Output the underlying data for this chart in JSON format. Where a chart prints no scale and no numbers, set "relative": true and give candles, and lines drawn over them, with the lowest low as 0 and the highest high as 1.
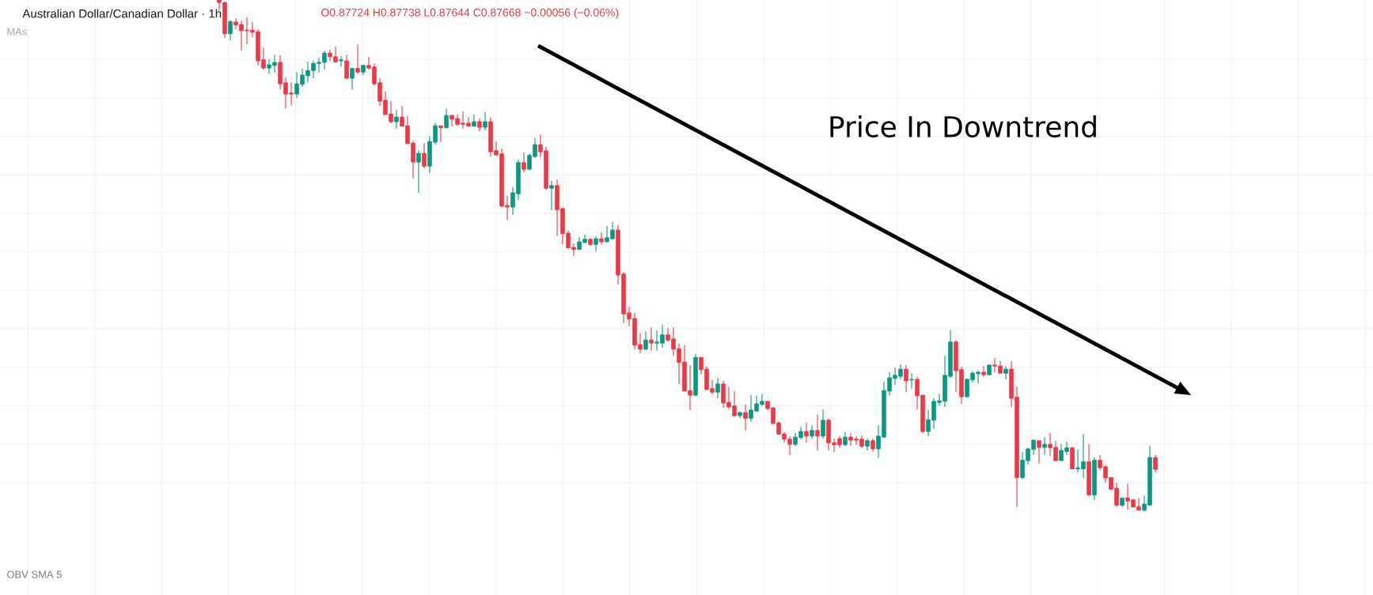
{
  "chart_data": {
    "type": "candlestick",
    "relative": true,
    "grid": true,
    "title": "Australian Dollar/Canadian Dollar · 1h",
    "subtitle": "O0.87724 H0.87738 L0.87644 C0.87668 −0.00056 (−0.06%)",
    "annotations": [
      "MAs",
      "Price In Downtrend",
      "OBV SMA 5"
    ],
    "categories": [
      null,
      null,
      null,
      null,
      null,
      null,
      null,
      null,
      null,
      null,
      null,
      null,
      null,
      null,
      null,
      null,
      null,
      null,
      null,
      null,
      null,
      null,
      null,
      null,
      null,
      null,
      null,
      null,
      null,
      null,
      null,
      null,
      null,
      null,
      null,
      null,
      null,
      null,
      null,
      null,
      null,
      null,
      null,
      null,
      null,
      null,
      null,
      null,
      null,
      null,
      null,
      null,
      null,
      null,
      null,
      null,
      null,
      null,
      null,
      null,
      null,
      null,
      null,
      null,
      null,
      null,
      null,
      null,
      null,
      null,
      null,
      null,
      null,
      null,
      null,
      null,
      null,
      null,
      null,
      null,
      null,
      null,
      null,
      null,
      null,
      null,
      null,
      null,
      null,
      null,
      null,
      null,
      null,
      null,
      null,
      null,
      null,
      null,
      null,
      null,
      null,
      null,
      null,
      null,
      null,
      null,
      null,
      null,
      null,
      null,
      null,
      null,
      null,
      null,
      null,
      null,
      null,
      null,
      null,
      null,
      null,
      null,
      null,
      null,
      null,
      null,
      null,
      null,
      null,
      null,
      null,
      null,
      null,
      null,
      null,
      null,
      null,
      null,
      null,
      null,
      null,
      null,
      null,
      null,
      null,
      null,
      null,
      null,
      null,
      null,
      null,
      null,
      null,
      null,
      null,
      null,
      null,
      null,
      null,
      null,
      null,
      null,
      null,
      null,
      null,
      null,
      null,
      null,
      null,
      null
    ],
    "ohlc": [
      [
        1,
        1,
        0.98,
        0.995
      ],
      [
        0.995,
        0.997,
        0.926,
        0.934
      ],
      [
        0.934,
        0.96,
        0.921,
        0.958
      ],
      [
        0.957,
        0.964,
        0.943,
        0.951
      ],
      [
        0.952,
        0.96,
        0.901,
        0.94
      ],
      [
        0.941,
        0.966,
        0.913,
        0.94
      ],
      [
        0.941,
        0.957,
        0.927,
        0.937
      ],
      [
        0.938,
        0.943,
        0.872,
        0.881
      ],
      [
        0.883,
        0.907,
        0.864,
        0.867
      ],
      [
        0.867,
        0.884,
        0.856,
        0.873
      ],
      [
        0.872,
        0.893,
        0.858,
        0.878
      ],
      [
        0.878,
        0.892,
        0.825,
        0.836
      ],
      [
        0.838,
        0.849,
        0.787,
        0.816
      ],
      [
        0.818,
        0.839,
        0.794,
        0.816
      ],
      [
        0.816,
        0.859,
        0.808,
        0.836
      ],
      [
        0.835,
        0.866,
        0.83,
        0.853
      ],
      [
        0.852,
        0.879,
        0.839,
        0.862
      ],
      [
        0.862,
        0.881,
        0.847,
        0.876
      ],
      [
        0.876,
        0.887,
        0.858,
        0.878
      ],
      [
        0.878,
        0.901,
        0.864,
        0.896
      ],
      [
        0.896,
        0.903,
        0.881,
        0.889
      ],
      [
        0.889,
        0.909,
        0.879,
        0.879
      ],
      [
        0.881,
        0.89,
        0.87,
        0.883
      ],
      [
        0.881,
        0.893,
        0.847,
        0.847
      ],
      [
        0.847,
        0.866,
        0.825,
        0.866
      ],
      [
        0.866,
        0.913,
        0.856,
        0.859
      ],
      [
        0.859,
        0.873,
        0.853,
        0.872
      ],
      [
        0.872,
        0.889,
        0.864,
        0.867
      ],
      [
        0.869,
        0.876,
        0.833,
        0.836
      ],
      [
        0.838,
        0.847,
        0.793,
        0.802
      ],
      [
        0.804,
        0.822,
        0.776,
        0.776
      ],
      [
        0.777,
        0.802,
        0.759,
        0.762
      ],
      [
        0.762,
        0.785,
        0.748,
        0.771
      ],
      [
        0.771,
        0.793,
        0.753,
        0.753
      ],
      [
        0.754,
        0.773,
        0.719,
        0.719
      ],
      [
        0.72,
        0.725,
        0.651,
        0.683
      ],
      [
        0.683,
        0.706,
        0.623,
        0.7
      ],
      [
        0.7,
        0.72,
        0.671,
        0.675
      ],
      [
        0.675,
        0.734,
        0.662,
        0.723
      ],
      [
        0.722,
        0.76,
        0.717,
        0.754
      ],
      [
        0.754,
        0.754,
        0.722,
        0.75
      ],
      [
        0.75,
        0.788,
        0.75,
        0.774
      ],
      [
        0.774,
        0.776,
        0.753,
        0.767
      ],
      [
        0.768,
        0.776,
        0.754,
        0.757
      ],
      [
        0.759,
        0.782,
        0.748,
        0.757
      ],
      [
        0.759,
        0.771,
        0.753,
        0.753
      ],
      [
        0.753,
        0.776,
        0.753,
        0.762
      ],
      [
        0.762,
        0.768,
        0.743,
        0.751
      ],
      [
        0.751,
        0.781,
        0.745,
        0.762
      ],
      [
        0.762,
        0.77,
        0.694,
        0.703
      ],
      [
        0.705,
        0.723,
        0.696,
        0.697
      ],
      [
        0.699,
        0.709,
        0.594,
        0.597
      ],
      [
        0.598,
        0.617,
        0.57,
        0.595
      ],
      [
        0.595,
        0.634,
        0.58,
        0.623
      ],
      [
        0.621,
        0.688,
        0.609,
        0.682
      ],
      [
        0.682,
        0.702,
        0.663,
        0.669
      ],
      [
        0.669,
        0.7,
        0.669,
        0.696
      ],
      [
        0.694,
        0.73,
        0.691,
        0.717
      ],
      [
        0.717,
        0.737,
        0.692,
        0.703
      ],
      [
        0.705,
        0.713,
        0.628,
        0.632
      ],
      [
        0.632,
        0.646,
        0.589,
        0.637
      ],
      [
        0.637,
        0.649,
        0.539,
        0.59
      ],
      [
        0.592,
        0.594,
        0.522,
        0.543
      ],
      [
        0.544,
        0.549,
        0.515,
        0.515
      ],
      [
        0.516,
        0.524,
        0.499,
        0.512
      ],
      [
        0.512,
        0.536,
        0.512,
        0.527
      ],
      [
        0.526,
        0.541,
        0.524,
        0.532
      ],
      [
        0.532,
        0.533,
        0.519,
        0.522
      ],
      [
        0.522,
        0.538,
        0.508,
        0.533
      ],
      [
        0.533,
        0.546,
        0.522,
        0.527
      ],
      [
        0.527,
        0.558,
        0.527,
        0.535
      ],
      [
        0.533,
        0.566,
        0.532,
        0.55
      ],
      [
        0.55,
        0.56,
        0.444,
        0.462
      ],
      [
        0.464,
        0.468,
        0.368,
        0.386
      ],
      [
        0.388,
        0.4,
        0.362,
        0.376
      ],
      [
        0.377,
        0.388,
        0.317,
        0.325
      ],
      [
        0.326,
        0.348,
        0.309,
        0.317
      ],
      [
        0.317,
        0.352,
        0.315,
        0.335
      ],
      [
        0.335,
        0.36,
        0.314,
        0.329
      ],
      [
        0.329,
        0.354,
        0.314,
        0.331
      ],
      [
        0.329,
        0.365,
        0.32,
        0.345
      ],
      [
        0.345,
        0.359,
        0.331,
        0.335
      ],
      [
        0.337,
        0.36,
        0.304,
        0.317
      ],
      [
        0.318,
        0.328,
        0.249,
        0.291
      ],
      [
        0.292,
        0.325,
        0.235,
        0.235
      ],
      [
        0.236,
        0.286,
        0.198,
        0.227
      ],
      [
        0.227,
        0.308,
        0.226,
        0.301
      ],
      [
        0.301,
        0.301,
        0.267,
        0.277
      ],
      [
        0.278,
        0.283,
        0.238,
        0.238
      ],
      [
        0.24,
        0.257,
        0.229,
        0.233
      ],
      [
        0.233,
        0.261,
        0.221,
        0.249
      ],
      [
        0.249,
        0.255,
        0.202,
        0.212
      ],
      [
        0.213,
        0.244,
        0.201,
        0.204
      ],
      [
        0.206,
        0.235,
        0.185,
        0.187
      ],
      [
        0.187,
        0.195,
        0.182,
        0.193
      ],
      [
        0.193,
        0.209,
        0.158,
        0.182
      ],
      [
        0.182,
        0.227,
        0.175,
        0.198
      ],
      [
        0.196,
        0.226,
        0.195,
        0.21
      ],
      [
        0.209,
        0.229,
        0.206,
        0.215
      ],
      [
        0.215,
        0.215,
        0.198,
        0.201
      ],
      [
        0.202,
        0.204,
        0.17,
        0.172
      ],
      [
        0.173,
        0.175,
        0.15,
        0.151
      ],
      [
        0.151,
        0.155,
        0.134,
        0.141
      ],
      [
        0.141,
        0.147,
        0.11,
        0.131
      ],
      [
        0.131,
        0.153,
        0.127,
        0.145
      ],
      [
        0.144,
        0.165,
        0.141,
        0.156
      ],
      [
        0.156,
        0.173,
        0.134,
        0.147
      ],
      [
        0.147,
        0.168,
        0.141,
        0.158
      ],
      [
        0.158,
        0.189,
        0.119,
        0.147
      ],
      [
        0.147,
        0.199,
        0.142,
        0.178
      ],
      [
        0.178,
        0.181,
        0.119,
        0.134
      ],
      [
        0.134,
        0.142,
        0.116,
        0.13
      ],
      [
        0.142,
        0.147,
        0.124,
        0.13
      ],
      [
        0.13,
        0.155,
        0.127,
        0.145
      ],
      [
        0.145,
        0.153,
        0.128,
        0.139
      ],
      [
        0.141,
        0.147,
        0.13,
        0.139
      ],
      [
        0.141,
        0.148,
        0.124,
        0.127
      ],
      [
        0.127,
        0.142,
        0.119,
        0.138
      ],
      [
        0.138,
        0.142,
        0.117,
        0.122
      ],
      [
        0.122,
        0.168,
        0.104,
        0.147
      ],
      [
        0.145,
        0.253,
        0.144,
        0.236
      ],
      [
        0.235,
        0.272,
        0.226,
        0.261
      ],
      [
        0.26,
        0.281,
        0.247,
        0.266
      ],
      [
        0.264,
        0.287,
        0.258,
        0.278
      ],
      [
        0.278,
        0.286,
        0.233,
        0.255
      ],
      [
        0.257,
        0.27,
        0.24,
        0.258
      ],
      [
        0.258,
        0.263,
        0.199,
        0.226
      ],
      [
        0.227,
        0.227,
        0.153,
        0.156
      ],
      [
        0.156,
        0.198,
        0.147,
        0.179
      ],
      [
        0.178,
        0.221,
        0.161,
        0.215
      ],
      [
        0.213,
        0.229,
        0.206,
        0.216
      ],
      [
        0.215,
        0.304,
        0.204,
        0.266
      ],
      [
        0.264,
        0.354,
        0.261,
        0.331
      ],
      [
        0.331,
        0.335,
        0.233,
        0.275
      ],
      [
        0.277,
        0.283,
        0.21,
        0.224
      ],
      [
        0.224,
        0.26,
        0.223,
        0.258
      ],
      [
        0.257,
        0.274,
        0.252,
        0.27
      ],
      [
        0.269,
        0.275,
        0.25,
        0.272
      ],
      [
        0.272,
        0.284,
        0.263,
        0.267
      ],
      [
        0.267,
        0.286,
        0.267,
        0.286
      ],
      [
        0.286,
        0.3,
        0.272,
        0.284
      ],
      [
        0.284,
        0.294,
        0.27,
        0.27
      ],
      [
        0.27,
        0.284,
        0.258,
        0.278
      ],
      [
        0.278,
        0.294,
        0.204,
        0.221
      ],
      [
        0.223,
        0.244,
        0.008,
        0.066
      ],
      [
        0.066,
        0.116,
        0.063,
        0.1
      ],
      [
        0.099,
        0.124,
        0.091,
        0.122
      ],
      [
        0.121,
        0.139,
        0.11,
        0.139
      ],
      [
        0.138,
        0.138,
        0.093,
        0.125
      ],
      [
        0.125,
        0.144,
        0.111,
        0.131
      ],
      [
        0.131,
        0.153,
        0.108,
        0.124
      ],
      [
        0.125,
        0.138,
        0.099,
        0.099
      ],
      [
        0.099,
        0.131,
        0.099,
        0.119
      ],
      [
        0.117,
        0.136,
        0.11,
        0.124
      ],
      [
        0.124,
        0.125,
        0.082,
        0.083
      ],
      [
        0.083,
        0.121,
        0.076,
        0.085
      ],
      [
        0.083,
        0.151,
        0.065,
        0.097
      ],
      [
        0.097,
        0.131,
        0.032,
        0.032
      ],
      [
        0.032,
        0.105,
        0.022,
        0.1
      ],
      [
        0.1,
        0.11,
        0.08,
        0.085
      ],
      [
        0.087,
        0.09,
        0.056,
        0.065
      ],
      [
        0.066,
        0.066,
        0.043,
        0.043
      ],
      [
        0.045,
        0.056,
        0.008,
        0.012
      ],
      [
        0.012,
        0.026,
        0.008,
        0.026
      ],
      [
        0.026,
        0.054,
        0.003,
        0.02
      ],
      [
        0.022,
        0.025,
        0.008,
        0.008
      ],
      [
        0.009,
        0.026,
        0.002,
        0.002
      ],
      [
        0.002,
        0.031,
        0,
        0.014
      ],
      [
        0.012,
        0.128,
        0.012,
        0.105
      ],
      [
        0.105,
        0.11,
        0.076,
        0.082
      ]
    ],
    "colors": [
      "#f23645",
      "#f23645",
      "#089981",
      "#f23645",
      "#f23645",
      "#f23645",
      "#f23645",
      "#f23645",
      "#f23645",
      "#089981",
      "#089981",
      "#f23645",
      "#f23645",
      "#f23645",
      "#089981",
      "#089981",
      "#089981",
      "#089981",
      "#089981",
      "#089981",
      "#f23645",
      "#f23645",
      "#089981",
      "#f23645",
      "#089981",
      "#f23645",
      "#089981",
      "#f23645",
      "#f23645",
      "#f23645",
      "#f23645",
      "#f23645",
      "#089981",
      "#f23645",
      "#f23645",
      "#f23645",
      "#089981",
      "#f23645",
      "#089981",
      "#089981",
      "#f23645",
      "#089981",
      "#f23645",
      "#f23645",
      "#f23645",
      "#f23645",
      "#089981",
      "#f23645",
      "#089981",
      "#f23645",
      "#f23645",
      "#f23645",
      "#f23645",
      "#089981",
      "#089981",
      "#f23645",
      "#089981",
      "#089981",
      "#f23645",
      "#f23645",
      "#089981",
      "#f23645",
      "#f23645",
      "#f23645",
      "#f23645",
      "#089981",
      "#089981",
      "#f23645",
      "#089981",
      "#f23645",
      "#089981",
      "#089981",
      "#f23645",
      "#f23645",
      "#f23645",
      "#f23645",
      "#f23645",
      "#089981",
      "#f23645",
      "#089981",
      "#089981",
      "#f23645",
      "#f23645",
      "#f23645",
      "#f23645",
      "#f23645",
      "#089981",
      "#f23645",
      "#f23645",
      "#f23645",
      "#089981",
      "#f23645",
      "#f23645",
      "#f23645",
      "#089981",
      "#f23645",
      "#089981",
      "#089981",
      "#089981",
      "#f23645",
      "#f23645",
      "#f23645",
      "#f23645",
      "#f23645",
      "#089981",
      "#089981",
      "#f23645",
      "#089981",
      "#f23645",
      "#089981",
      "#f23645",
      "#f23645",
      "#f23645",
      "#089981",
      "#f23645",
      "#f23645",
      "#f23645",
      "#089981",
      "#f23645",
      "#089981",
      "#089981",
      "#089981",
      "#089981",
      "#089981",
      "#f23645",
      "#089981",
      "#f23645",
      "#f23645",
      "#089981",
      "#089981",
      "#089981",
      "#089981",
      "#089981",
      "#f23645",
      "#f23645",
      "#089981",
      "#089981",
      "#089981",
      "#f23645",
      "#089981",
      "#f23645",
      "#f23645",
      "#089981",
      "#f23645",
      "#f23645",
      "#089981",
      "#089981",
      "#089981",
      "#f23645",
      "#089981",
      "#f23645",
      "#f23645",
      "#089981",
      "#089981",
      "#f23645",
      "#089981",
      "#089981",
      "#f23645",
      "#089981",
      "#f23645",
      "#f23645",
      "#f23645",
      "#f23645",
      "#089981",
      "#f23645",
      "#f23645",
      "#f23645",
      "#089981",
      "#089981",
      "#f23645"
    ]
  }
}
